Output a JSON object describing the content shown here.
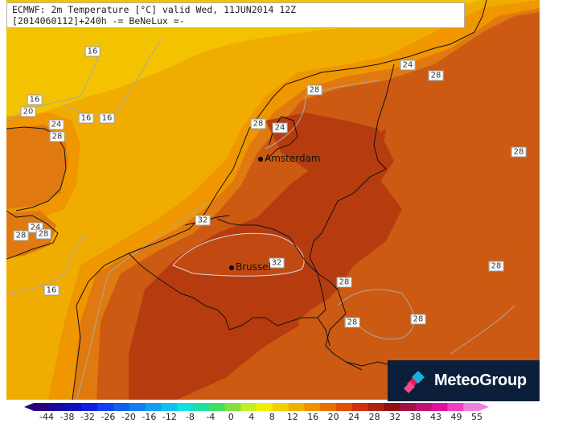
{
  "header": {
    "line1": "ECMWF: 2m Temperature [°C] valid Wed, 11JUN2014 12Z",
    "line2": "[2014060112]+240h -= BeNeLux =-"
  },
  "logo": {
    "text": "MeteoGroup"
  },
  "cities": [
    {
      "id": "amsterdam",
      "name": "Amsterdam"
    },
    {
      "id": "brussel",
      "name": "Brussel"
    }
  ],
  "contour_labels": [
    "16",
    "16",
    "20",
    "24",
    "28",
    "16",
    "16",
    "24",
    "28",
    "28",
    "24",
    "28",
    "24",
    "32",
    "32",
    "28",
    "28",
    "28",
    "28",
    "28",
    "16",
    "28",
    "28"
  ],
  "colorbar": {
    "ticks": [
      "-44",
      "-38",
      "-32",
      "-26",
      "-20",
      "-16",
      "-12",
      "-8",
      "-4",
      "0",
      "4",
      "8",
      "12",
      "16",
      "20",
      "24",
      "28",
      "32",
      "38",
      "43",
      "49",
      "55"
    ],
    "colors": [
      "#2a0080",
      "#1a0aa0",
      "#1010c0",
      "#1020e0",
      "#1040f0",
      "#1060f0",
      "#1080f0",
      "#10a0f0",
      "#10c0f0",
      "#10e0e0",
      "#20e0a0",
      "#40e060",
      "#80e040",
      "#c0f020",
      "#f0f000",
      "#f0d000",
      "#f0b000",
      "#f09000",
      "#e87000",
      "#e05000",
      "#d03010",
      "#b02010",
      "#901010",
      "#a01040",
      "#c01070",
      "#e010a0",
      "#f040c0",
      "#f080e0"
    ]
  },
  "map_colors": {
    "sea_cool": "#f3c200",
    "sea_warm": "#f0a800",
    "t20": "#ef9600",
    "t24": "#e07a10",
    "t28": "#cc5a12",
    "t32": "#b63c10"
  }
}
